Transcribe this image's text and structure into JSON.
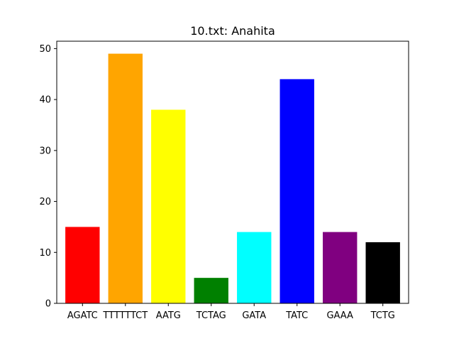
{
  "chart_data": {
    "type": "bar",
    "title": "10.txt: Anahita",
    "xlabel": "",
    "ylabel": "",
    "categories": [
      "AGATC",
      "TTTTTTCT",
      "AATG",
      "TCTAG",
      "GATA",
      "TATC",
      "GAAA",
      "TCTG"
    ],
    "values": [
      15,
      49,
      38,
      5,
      14,
      44,
      14,
      12
    ],
    "colors": [
      "#ff0000",
      "#ffa500",
      "#ffff00",
      "#008000",
      "#00ffff",
      "#0000ff",
      "#800080",
      "#000000"
    ],
    "ylim": [
      0,
      51.45
    ],
    "yticks": [
      0,
      10,
      20,
      30,
      40,
      50
    ],
    "grid": false,
    "legend": "none"
  }
}
